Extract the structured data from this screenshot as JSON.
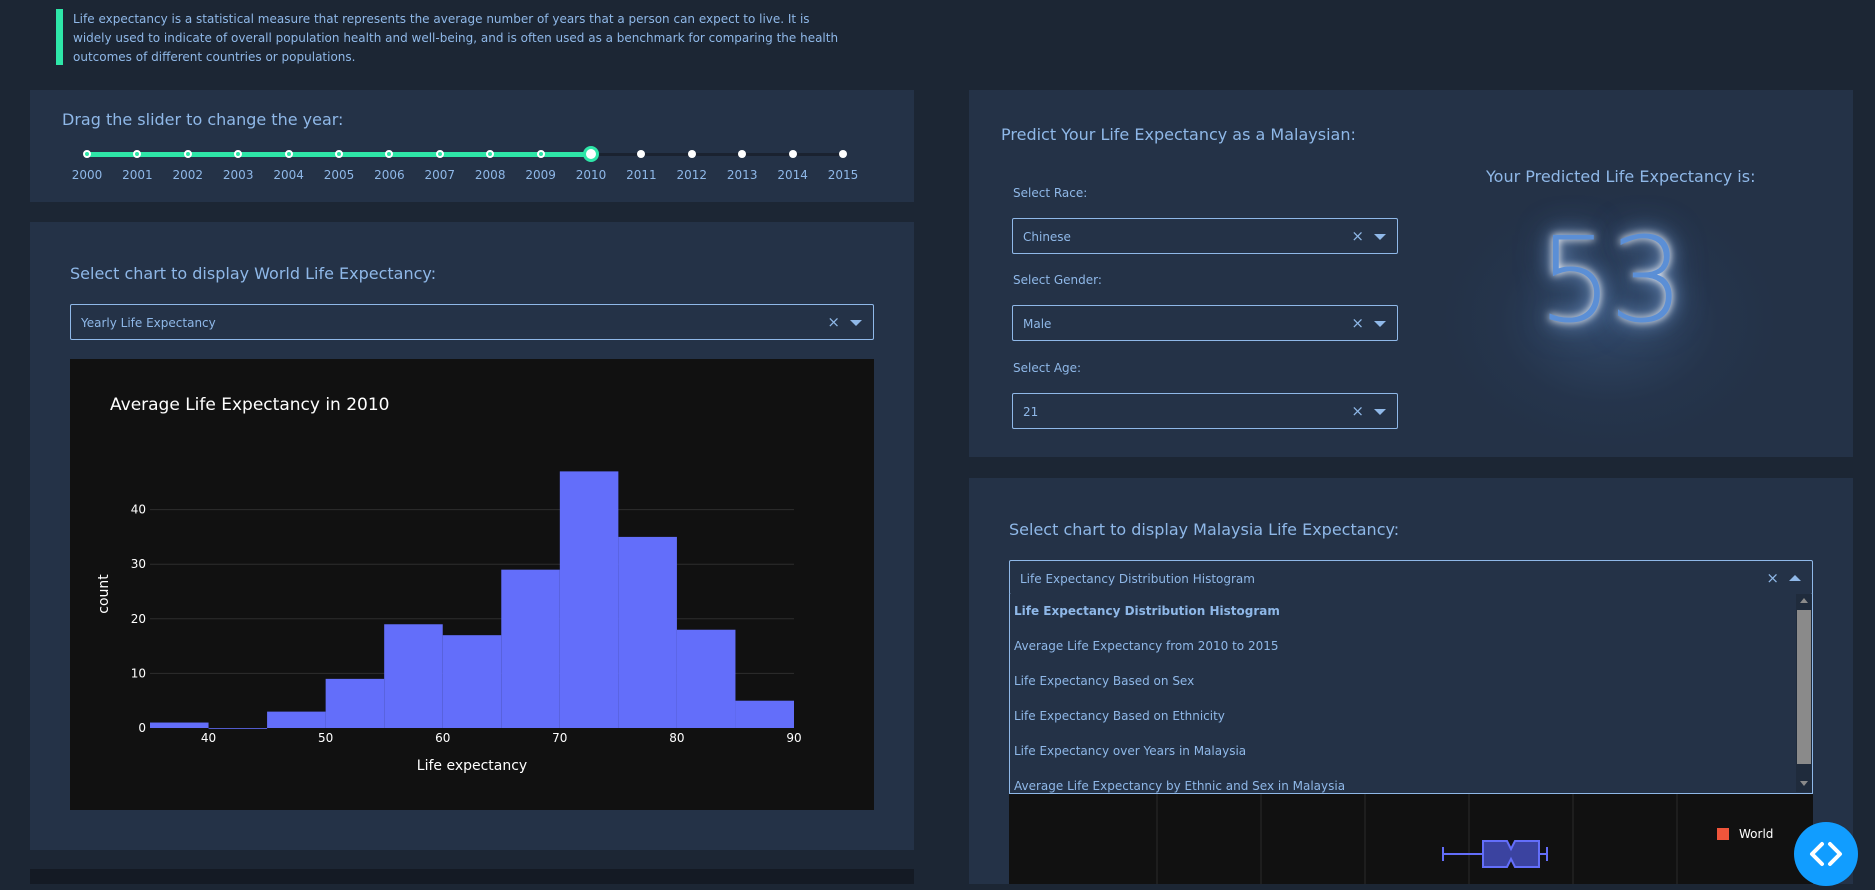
{
  "intro": {
    "text": "Life expectancy is a statistical measure that represents the average number of years that a person can expect to live. It is widely used to indicate of overall population health and well-being, and is often used as a benchmark for comparing the health outcomes of different countries or populations."
  },
  "slider": {
    "title": "Drag the slider to change the year:",
    "marks": [
      "2000",
      "2001",
      "2002",
      "2003",
      "2004",
      "2005",
      "2006",
      "2007",
      "2008",
      "2009",
      "2010",
      "2011",
      "2012",
      "2013",
      "2014",
      "2015"
    ],
    "selected": "2010",
    "accent": "#2ee6a8"
  },
  "world": {
    "title": "Select chart to display World Life Expectancy:",
    "dropdown_value": "Yearly Life Expectancy",
    "clear_glyph": "×"
  },
  "chart_data": {
    "type": "bar",
    "title": "Average Life Expectancy in 2010",
    "xlabel": "Life expectancy",
    "ylabel": "count",
    "x_bins": [
      [
        35,
        40
      ],
      [
        40,
        45
      ],
      [
        45,
        50
      ],
      [
        50,
        55
      ],
      [
        55,
        60
      ],
      [
        60,
        65
      ],
      [
        65,
        70
      ],
      [
        70,
        75
      ],
      [
        75,
        80
      ],
      [
        80,
        85
      ],
      [
        85,
        90
      ]
    ],
    "values": [
      1,
      0,
      3,
      9,
      19,
      17,
      29,
      47,
      35,
      18,
      5
    ],
    "xlim": [
      35,
      90
    ],
    "ylim": [
      0,
      50
    ],
    "x_ticks": [
      40,
      50,
      60,
      70,
      80,
      90
    ],
    "y_ticks": [
      0,
      10,
      20,
      30,
      40
    ],
    "bar_color": "#636efa",
    "grid": true
  },
  "predict": {
    "title": "Predict Your Life Expectancy as a Malaysian:",
    "race_label": "Select Race:",
    "race_value": "Chinese",
    "gender_label": "Select Gender:",
    "gender_value": "Male",
    "age_label": "Select Age:",
    "age_value": "21",
    "result_title": "Your Predicted Life Expectancy is:",
    "result_value": "53"
  },
  "malaysia": {
    "title": "Select chart to display Malaysia Life Expectancy:",
    "dropdown_value": "Life Expectancy Distribution Histogram",
    "options": [
      "Life Expectancy Distribution Histogram",
      "Average Life Expectancy from 2010 to 2015",
      "Life Expectancy Based on Sex",
      "Life Expectancy Based on Ethnicity",
      "Life Expectancy over Years in Malaysia",
      "Average Life Expectancy by Ethnic and Sex in Malaysia"
    ],
    "legend_label": "World",
    "legend_color": "#ef553b",
    "box_color": "#636efa"
  }
}
